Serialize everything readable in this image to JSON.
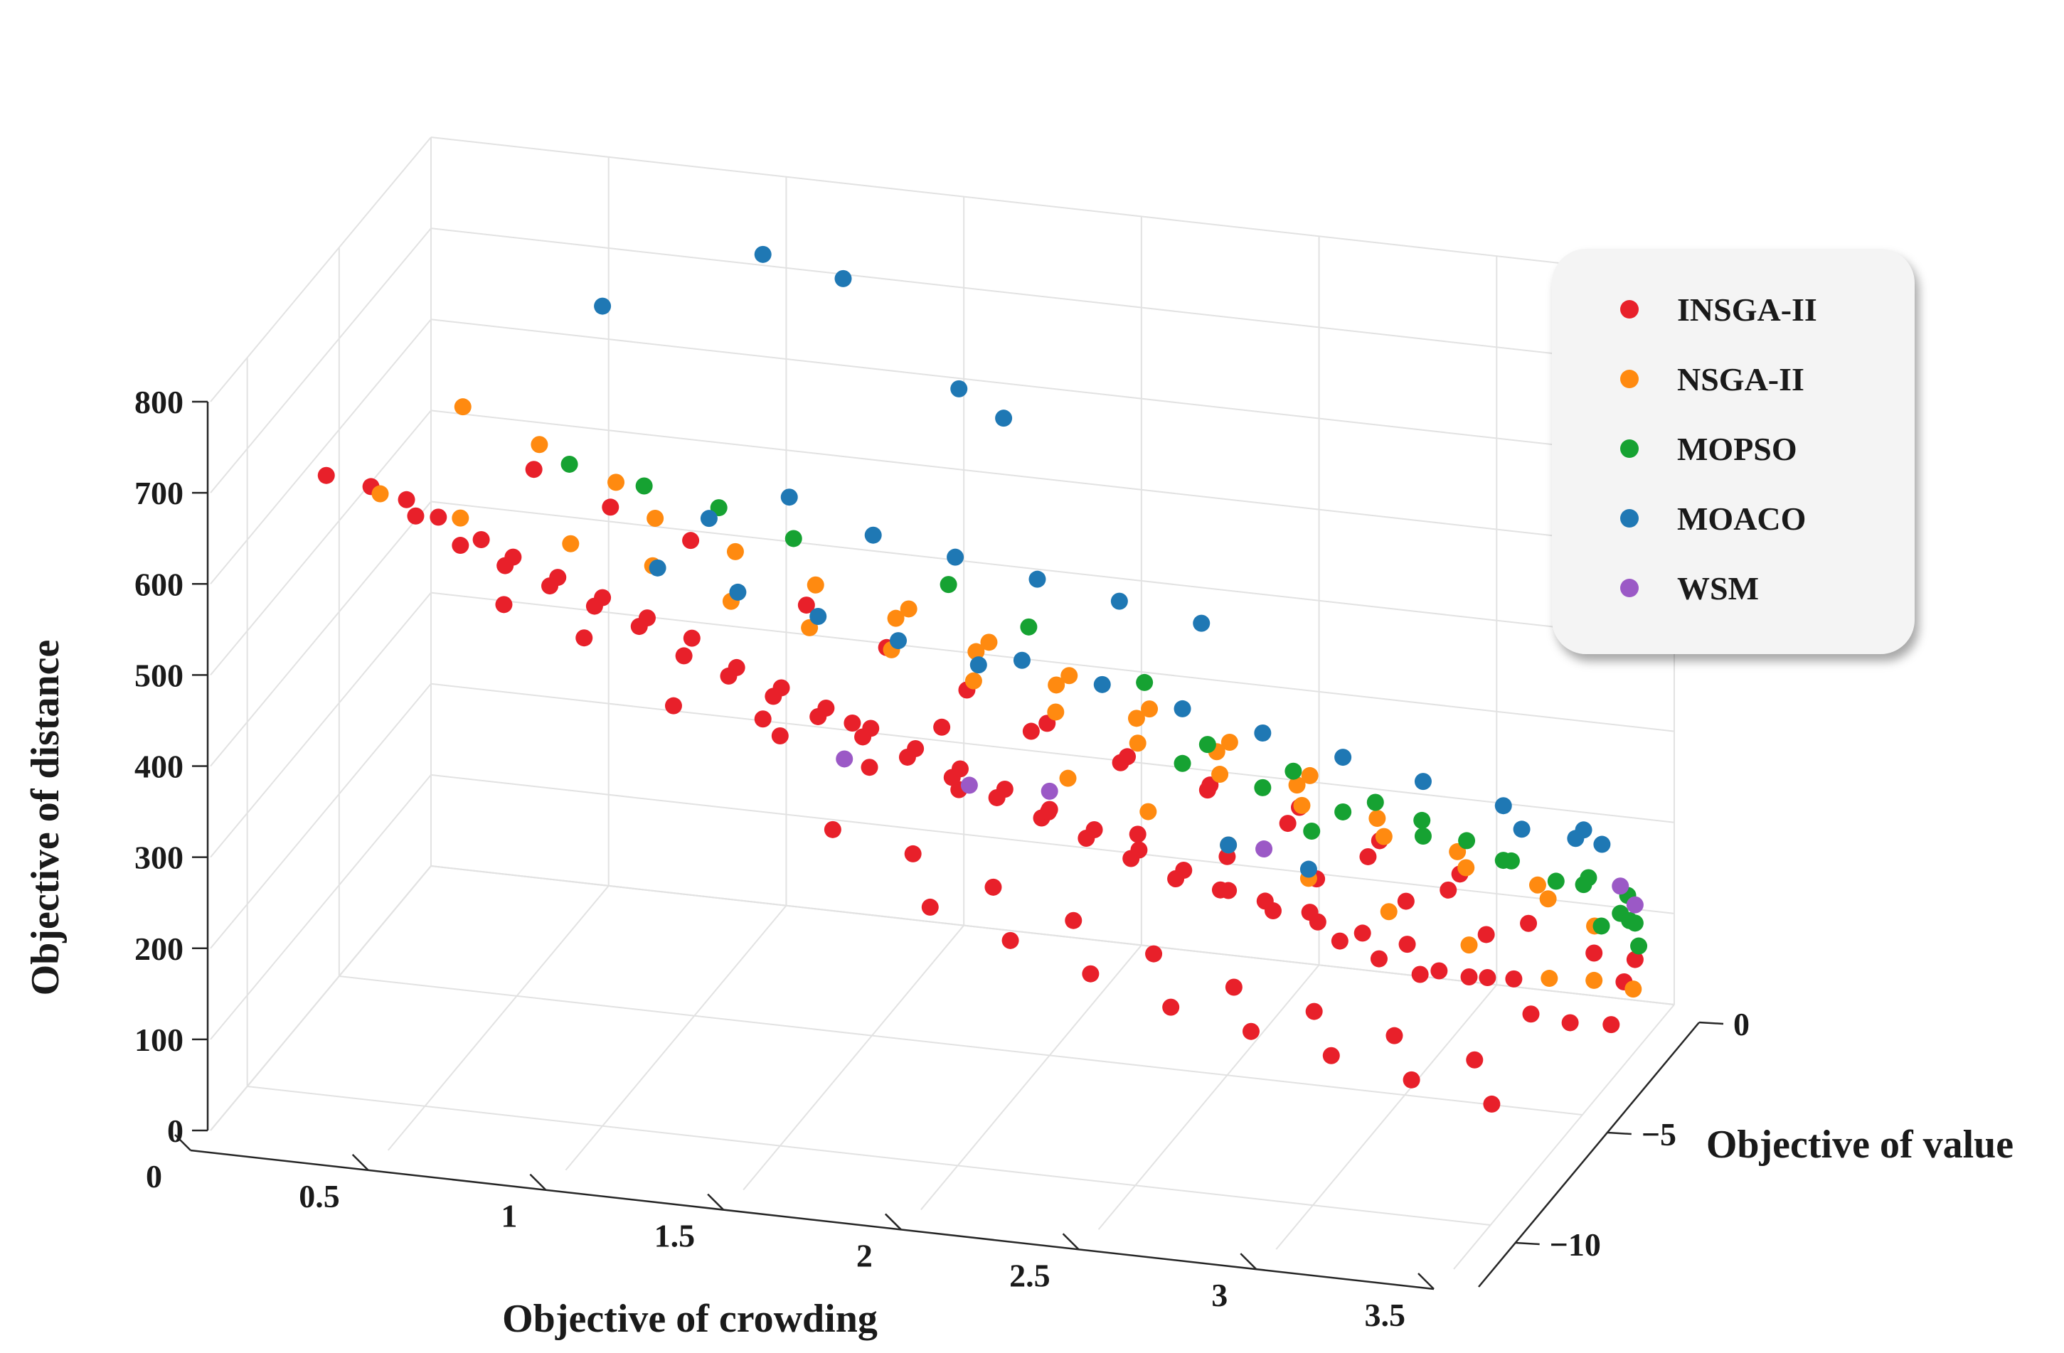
{
  "chart_data": {
    "type": "scatter",
    "dimensions": 3,
    "xlabel": "Objective of crowding",
    "ylabel": "Objective of value",
    "zlabel": "Objective of distance",
    "xlim": [
      0,
      3.5
    ],
    "ylim": [
      -12,
      0
    ],
    "zlim": [
      0,
      800
    ],
    "xticks": [
      "0",
      "0.5",
      "1",
      "1.5",
      "2",
      "2.5",
      "3",
      "3.5"
    ],
    "yticks": [
      "0",
      "−5",
      "−10"
    ],
    "zticks": [
      "0",
      "100",
      "200",
      "300",
      "400",
      "500",
      "600",
      "700",
      "800"
    ],
    "grid": true,
    "legend_position": "top-right",
    "series": [
      {
        "name": "INSGA-II",
        "color": "#e8202a",
        "points": [
          [
            0.3,
            -11.5,
            720
          ],
          [
            0.4,
            -11,
            700
          ],
          [
            0.5,
            -11,
            690
          ],
          [
            0.6,
            -11.2,
            680
          ],
          [
            0.5,
            -10.5,
            660
          ],
          [
            0.7,
            -10.8,
            650
          ],
          [
            0.8,
            -11,
            640
          ],
          [
            0.6,
            -10,
            620
          ],
          [
            0.9,
            -10.5,
            610
          ],
          [
            0.7,
            -9.5,
            590
          ],
          [
            1.0,
            -10,
            580
          ],
          [
            0.8,
            -9,
            560
          ],
          [
            1.1,
            -9.5,
            550
          ],
          [
            0.9,
            -8.5,
            530
          ],
          [
            1.2,
            -9,
            520
          ],
          [
            1.0,
            -8,
            500
          ],
          [
            1.3,
            -8.5,
            480
          ],
          [
            1.1,
            -7.5,
            460
          ],
          [
            1.4,
            -8,
            450
          ],
          [
            1.2,
            -7,
            430
          ],
          [
            1.5,
            -7.5,
            420
          ],
          [
            1.3,
            -6.5,
            400
          ],
          [
            1.6,
            -7,
            390
          ],
          [
            1.4,
            -6,
            370
          ],
          [
            1.7,
            -6.5,
            360
          ],
          [
            1.5,
            -5.5,
            340
          ],
          [
            1.8,
            -6,
            330
          ],
          [
            1.6,
            -5,
            310
          ],
          [
            1.9,
            -5.5,
            300
          ],
          [
            1.7,
            -4.5,
            280
          ],
          [
            2.0,
            -5,
            270
          ],
          [
            1.8,
            -4,
            250
          ],
          [
            2.1,
            -4.5,
            240
          ],
          [
            1.9,
            -3.5,
            220
          ],
          [
            2.2,
            -4,
            210
          ],
          [
            2.0,
            -3,
            190
          ],
          [
            2.3,
            -3.5,
            180
          ],
          [
            2.1,
            -2.5,
            160
          ],
          [
            2.4,
            -3,
            150
          ],
          [
            2.2,
            -2,
            130
          ],
          [
            2.5,
            -2.5,
            120
          ],
          [
            2.3,
            -1.5,
            110
          ],
          [
            2.6,
            -2,
            100
          ],
          [
            2.4,
            -1,
            90
          ],
          [
            2.7,
            -1.5,
            80
          ],
          [
            2.5,
            -0.5,
            70
          ],
          [
            2.8,
            -1,
            60
          ],
          [
            2.6,
            -0.8,
            50
          ],
          [
            2.9,
            -1.2,
            40
          ],
          [
            2.7,
            -0.6,
            30
          ],
          [
            3.0,
            -1.5,
            45
          ],
          [
            3.1,
            -1.0,
            35
          ],
          [
            3.2,
            -2.0,
            25
          ],
          [
            3.3,
            -1.8,
            15
          ],
          [
            3.4,
            -1.5,
            10
          ],
          [
            3.0,
            -0.5,
            20
          ],
          [
            2.8,
            -0.3,
            10
          ],
          [
            2.0,
            -6,
            380
          ],
          [
            1.8,
            -7,
            400
          ],
          [
            1.6,
            -8,
            420
          ],
          [
            1.4,
            -9,
            440
          ],
          [
            2.2,
            -5,
            330
          ],
          [
            2.4,
            -4,
            290
          ],
          [
            2.6,
            -3,
            250
          ],
          [
            2.8,
            -2.5,
            210
          ],
          [
            3.0,
            -2,
            170
          ],
          [
            1.2,
            -10,
            470
          ],
          [
            1.0,
            -11,
            560
          ],
          [
            0.8,
            -11.5,
            600
          ],
          [
            1.5,
            -10,
            450
          ],
          [
            1.7,
            -9,
            400
          ],
          [
            1.9,
            -8,
            360
          ],
          [
            2.1,
            -7,
            320
          ],
          [
            2.3,
            -6,
            280
          ],
          [
            2.5,
            -5,
            240
          ],
          [
            2.7,
            -4,
            200
          ],
          [
            2.9,
            -3,
            160
          ],
          [
            3.1,
            -2.5,
            120
          ],
          [
            3.3,
            -0.5,
            60
          ],
          [
            3.4,
            -0.2,
            50
          ],
          [
            3.4,
            -0.8,
            40
          ],
          [
            0.9,
            -11.8,
            760
          ],
          [
            1.1,
            -11.5,
            720
          ],
          [
            1.3,
            -11,
            680
          ],
          [
            1.6,
            -10.5,
            610
          ],
          [
            1.8,
            -10,
            560
          ],
          [
            2.0,
            -9.5,
            510
          ],
          [
            2.2,
            -9,
            470
          ],
          [
            2.4,
            -8.5,
            430
          ],
          [
            2.6,
            -8,
            390
          ],
          [
            2.8,
            -7.5,
            350
          ],
          [
            3.0,
            -7,
            310
          ],
          [
            3.2,
            -6.5,
            270
          ],
          [
            3.4,
            -6,
            230
          ],
          [
            1.7,
            -11,
            380
          ],
          [
            1.9,
            -10.5,
            350
          ],
          [
            2.1,
            -10,
            310
          ],
          [
            2.3,
            -9.5,
            270
          ],
          [
            2.5,
            -9,
            230
          ],
          [
            2.7,
            -8.5,
            190
          ],
          [
            2.9,
            -8,
            160
          ],
          [
            3.1,
            -7.5,
            130
          ],
          [
            3.3,
            -7,
            100
          ],
          [
            2.0,
            -11.5,
            320
          ],
          [
            2.2,
            -11,
            280
          ],
          [
            2.4,
            -10.5,
            240
          ],
          [
            2.6,
            -10,
            200
          ],
          [
            2.8,
            -9.5,
            170
          ],
          [
            3.0,
            -9,
            140
          ],
          [
            3.2,
            -8.5,
            110
          ],
          [
            3.4,
            -8,
            80
          ]
        ]
      },
      {
        "name": "NSGA-II",
        "color": "#ff8a10",
        "points": [
          [
            0.4,
            -10.5,
            680
          ],
          [
            0.6,
            -10,
            650
          ],
          [
            0.9,
            -9.8,
            630
          ],
          [
            1.1,
            -9.2,
            600
          ],
          [
            1.3,
            -8.8,
            560
          ],
          [
            1.5,
            -8.4,
            530
          ],
          [
            1.7,
            -7.8,
            500
          ],
          [
            1.9,
            -7.2,
            460
          ],
          [
            2.1,
            -6.6,
            420
          ],
          [
            2.3,
            -6,
            380
          ],
          [
            2.5,
            -5.4,
            340
          ],
          [
            2.7,
            -4.8,
            300
          ],
          [
            2.9,
            -4.2,
            260
          ],
          [
            3.1,
            -3.6,
            220
          ],
          [
            3.3,
            -3,
            180
          ],
          [
            3.4,
            -2.4,
            140
          ],
          [
            1.2,
            -11,
            700
          ],
          [
            1.4,
            -10.5,
            660
          ],
          [
            1.6,
            -10,
            620
          ],
          [
            1.8,
            -9.5,
            580
          ],
          [
            2.0,
            -9,
            540
          ],
          [
            2.2,
            -8.5,
            500
          ],
          [
            2.4,
            -8,
            460
          ],
          [
            2.6,
            -7.5,
            420
          ],
          [
            2.8,
            -7,
            380
          ],
          [
            3.0,
            -6.5,
            340
          ],
          [
            3.2,
            -6,
            300
          ],
          [
            3.4,
            -5.5,
            260
          ],
          [
            2.0,
            -4,
            280
          ],
          [
            2.2,
            -3.5,
            240
          ],
          [
            2.4,
            -3,
            200
          ],
          [
            2.6,
            -2.5,
            160
          ],
          [
            2.8,
            -2,
            120
          ],
          [
            3.0,
            -1.5,
            80
          ],
          [
            3.2,
            -1,
            40
          ],
          [
            3.3,
            -0.5,
            30
          ],
          [
            3.4,
            -0.3,
            20
          ],
          [
            1.5,
            -3,
            420
          ],
          [
            1.7,
            -2.5,
            380
          ],
          [
            1.9,
            -2,
            340
          ],
          [
            2.1,
            -1.5,
            300
          ],
          [
            2.3,
            -1,
            260
          ],
          [
            2.5,
            -0.5,
            220
          ],
          [
            0.7,
            -11.8,
            820
          ],
          [
            0.9,
            -11.5,
            780
          ],
          [
            1.1,
            -11.2,
            740
          ]
        ]
      },
      {
        "name": "MOPSO",
        "color": "#16a232",
        "points": [
          [
            1.0,
            -11.8,
            770
          ],
          [
            1.2,
            -11.6,
            750
          ],
          [
            1.4,
            -11.4,
            730
          ],
          [
            1.6,
            -11.2,
            700
          ],
          [
            2.0,
            -10.5,
            650
          ],
          [
            2.2,
            -10,
            600
          ],
          [
            2.5,
            -9.5,
            540
          ],
          [
            2.6,
            -8,
            440
          ],
          [
            2.8,
            -7.2,
            400
          ],
          [
            3.0,
            -6.6,
            360
          ],
          [
            3.1,
            -6,
            330
          ],
          [
            3.2,
            -5.5,
            300
          ],
          [
            3.3,
            -5,
            270
          ],
          [
            3.4,
            -4.5,
            240
          ],
          [
            3.4,
            -3,
            200
          ],
          [
            3.2,
            -3.5,
            230
          ],
          [
            3.0,
            -4,
            260
          ],
          [
            2.8,
            -4.5,
            290
          ],
          [
            2.6,
            -5,
            320
          ],
          [
            2.4,
            -5.5,
            350
          ],
          [
            3.4,
            -1,
            120
          ],
          [
            3.3,
            -0.8,
            150
          ],
          [
            3.4,
            -0.5,
            100
          ],
          [
            3.4,
            -0.2,
            90
          ],
          [
            3.3,
            -0.1,
            80
          ],
          [
            3.4,
            0,
            60
          ],
          [
            3.4,
            -0.6,
            130
          ],
          [
            2.8,
            -6.2,
            310
          ]
        ]
      },
      {
        "name": "MOACO",
        "color": "#1f78b4",
        "points": [
          [
            1.0,
            -10,
            900
          ],
          [
            1.4,
            -9,
            950
          ],
          [
            1.6,
            -8.5,
            920
          ],
          [
            1.9,
            -8,
            800
          ],
          [
            2.0,
            -7.5,
            760
          ],
          [
            1.5,
            -9.5,
            700
          ],
          [
            1.3,
            -10,
            680
          ],
          [
            1.7,
            -8.8,
            650
          ],
          [
            1.9,
            -8.2,
            620
          ],
          [
            2.1,
            -7.6,
            590
          ],
          [
            2.3,
            -7,
            560
          ],
          [
            2.5,
            -6.4,
            530
          ],
          [
            2.0,
            -6.5,
            470
          ],
          [
            2.2,
            -6,
            440
          ],
          [
            2.4,
            -5.5,
            410
          ],
          [
            2.6,
            -5,
            380
          ],
          [
            2.8,
            -4.5,
            350
          ],
          [
            3.0,
            -4,
            320
          ],
          [
            3.2,
            -3.5,
            290
          ],
          [
            3.4,
            -3,
            260
          ],
          [
            3.4,
            -2,
            220
          ],
          [
            3.3,
            -1.5,
            210
          ],
          [
            3.2,
            -2.5,
            240
          ],
          [
            2.4,
            -3,
            200
          ],
          [
            2.6,
            -2.5,
            170
          ],
          [
            1.8,
            -5,
            420
          ],
          [
            1.6,
            -5.5,
            450
          ],
          [
            1.4,
            -6,
            480
          ],
          [
            1.2,
            -6.5,
            510
          ],
          [
            1.0,
            -7,
            540
          ]
        ]
      },
      {
        "name": "WSM",
        "color": "#9b59c6",
        "points": [
          [
            1.5,
            -6.5,
            340
          ],
          [
            1.8,
            -5.5,
            300
          ],
          [
            2.0,
            -5,
            290
          ],
          [
            2.5,
            -3,
            200
          ],
          [
            3.4,
            -1,
            150
          ],
          [
            3.4,
            -0.2,
            110
          ]
        ]
      }
    ]
  }
}
